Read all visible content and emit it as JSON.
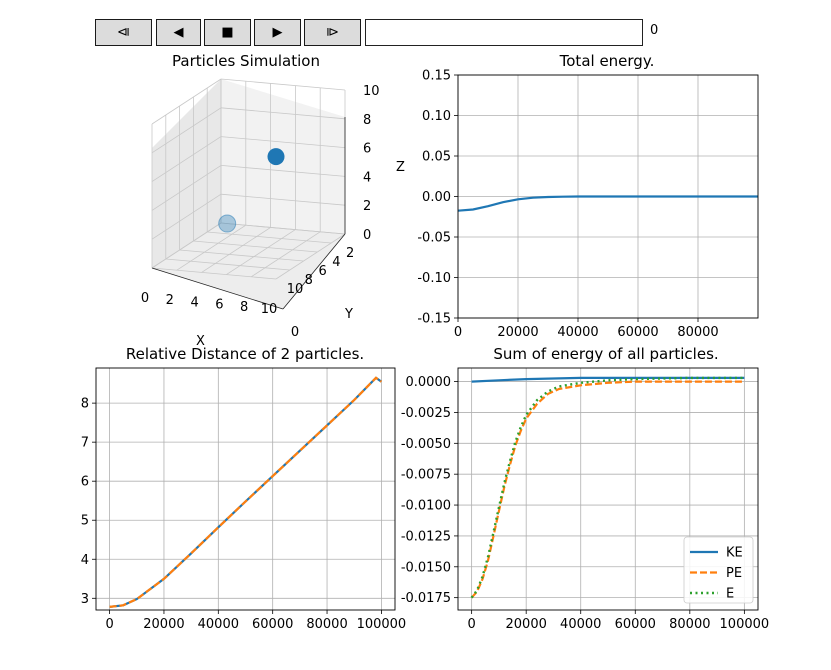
{
  "controls": {
    "buttons": [
      {
        "name": "first-frame-button",
        "glyph": "⧏"
      },
      {
        "name": "prev-frame-button",
        "glyph": "◀"
      },
      {
        "name": "stop-button",
        "glyph": "■"
      },
      {
        "name": "play-button",
        "glyph": "▶"
      },
      {
        "name": "last-frame-button",
        "glyph": "⧐"
      }
    ],
    "frame_value": "",
    "frame_count": "0"
  },
  "colors": {
    "blue": "#1f77b4",
    "orange": "#ff7f0e",
    "green": "#2ca02c",
    "grid": "#b0b0b0"
  },
  "chart_data": [
    {
      "type": "scatter3d",
      "title": "Particles Simulation",
      "xlabel": "X",
      "ylabel": "Y",
      "zlabel": "Z",
      "xticks": [
        "0",
        "2",
        "4",
        "6",
        "8",
        "10"
      ],
      "yticks": [
        "2",
        "4",
        "6",
        "8",
        "10"
      ],
      "y_zero_tick": "0",
      "zticks": [
        "0",
        "2",
        "4",
        "6",
        "8",
        "10"
      ],
      "points": [
        {
          "x": 10,
          "y": 10,
          "z": 8.5,
          "opacity": 1.0
        },
        {
          "x": 0.5,
          "y": 0,
          "z": 0,
          "opacity": 0.35
        }
      ]
    },
    {
      "type": "line",
      "title": "Total energy.",
      "xlim": [
        0,
        100000
      ],
      "ylim": [
        -0.15,
        0.15
      ],
      "xticks": [
        "0",
        "20000",
        "40000",
        "60000",
        "80000"
      ],
      "yticks": [
        "-0.15",
        "-0.10",
        "-0.05",
        "0.00",
        "0.05",
        "0.10",
        "0.15"
      ],
      "grid": true,
      "series": [
        {
          "x": [
            0,
            5000,
            10000,
            15000,
            20000,
            25000,
            30000,
            35000,
            40000,
            50000,
            60000,
            70000,
            80000,
            90000,
            100000
          ],
          "y": [
            -0.0175,
            -0.016,
            -0.012,
            -0.007,
            -0.0035,
            -0.0015,
            -0.0006,
            -0.0002,
            0.0,
            0.0,
            0.0,
            0.0,
            0.0,
            0.0,
            0.0
          ]
        }
      ]
    },
    {
      "type": "line",
      "title": "Relative Distance of 2 particles.",
      "xlim": [
        -5000,
        105000
      ],
      "ylim": [
        2.7,
        8.9
      ],
      "xticks": [
        "0",
        "20000",
        "40000",
        "60000",
        "80000",
        "100000"
      ],
      "yticks": [
        "3",
        "4",
        "5",
        "6",
        "7",
        "8"
      ],
      "grid": true,
      "series": [
        {
          "color": "blue",
          "dash": "solid",
          "x": [
            0,
            5000,
            10000,
            20000,
            30000,
            40000,
            50000,
            60000,
            70000,
            80000,
            90000,
            98000,
            100000
          ],
          "y": [
            2.78,
            2.82,
            2.98,
            3.5,
            4.15,
            4.82,
            5.48,
            6.13,
            6.78,
            7.43,
            8.08,
            8.65,
            8.55
          ]
        },
        {
          "color": "orange",
          "dash": "dashed",
          "x": [
            0,
            5000,
            10000,
            20000,
            30000,
            40000,
            50000,
            60000,
            70000,
            80000,
            90000,
            98000,
            100000
          ],
          "y": [
            2.78,
            2.82,
            2.98,
            3.5,
            4.15,
            4.82,
            5.48,
            6.13,
            6.78,
            7.43,
            8.08,
            8.65,
            8.55
          ]
        }
      ]
    },
    {
      "type": "line",
      "title": "Sum of energy of all particles.",
      "xlim": [
        -5000,
        105000
      ],
      "ylim": [
        -0.0185,
        0.0011
      ],
      "xticks": [
        "0",
        "20000",
        "40000",
        "60000",
        "80000",
        "100000"
      ],
      "yticks": [
        "0.0000",
        "-0.0025",
        "-0.0050",
        "-0.0075",
        "-0.0100",
        "-0.0125",
        "-0.0150",
        "-0.0175"
      ],
      "grid": true,
      "legend": "lower-right",
      "series": [
        {
          "name": "KE",
          "color": "blue",
          "dash": "solid",
          "x": [
            0,
            10000,
            20000,
            30000,
            40000,
            50000,
            60000,
            80000,
            100000
          ],
          "y": [
            0.0,
            0.0001,
            0.0002,
            0.00025,
            0.0003,
            0.0003,
            0.0003,
            0.0003,
            0.0003
          ]
        },
        {
          "name": "PE",
          "color": "orange",
          "dash": "dashed",
          "x": [
            0,
            2000,
            4000,
            6000,
            8000,
            10000,
            12000,
            14000,
            16000,
            18000,
            20000,
            24000,
            28000,
            32000,
            40000,
            50000,
            60000,
            80000,
            100000
          ],
          "y": [
            -0.0175,
            -0.017,
            -0.016,
            -0.0145,
            -0.0125,
            -0.0105,
            -0.0085,
            -0.0068,
            -0.0052,
            -0.004,
            -0.003,
            -0.0018,
            -0.001,
            -0.0006,
            -0.0003,
            -0.0001,
            0.0,
            0.0,
            0.0
          ]
        },
        {
          "name": "E",
          "color": "green",
          "dash": "dotted",
          "x": [
            0,
            2000,
            4000,
            6000,
            8000,
            10000,
            12000,
            14000,
            16000,
            18000,
            20000,
            24000,
            28000,
            32000,
            40000,
            50000,
            60000,
            80000,
            100000
          ],
          "y": [
            -0.0175,
            -0.0169,
            -0.0158,
            -0.0142,
            -0.0122,
            -0.0102,
            -0.0082,
            -0.0065,
            -0.0049,
            -0.0037,
            -0.0027,
            -0.0015,
            -0.0008,
            -0.0004,
            -0.0001,
            0.0001,
            0.0002,
            0.0003,
            0.0003
          ]
        }
      ]
    }
  ]
}
